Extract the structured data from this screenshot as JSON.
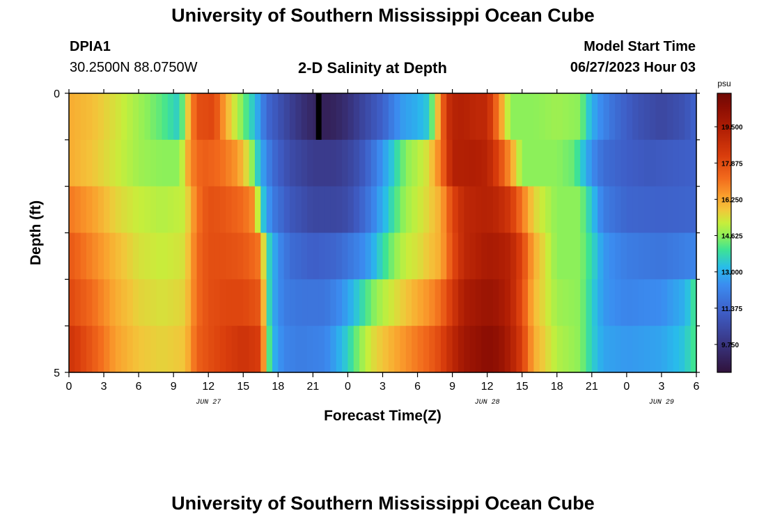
{
  "header": {
    "title": "University of Southern Mississippi Ocean Cube",
    "station_id": "DPIA1",
    "station_coords": "30.2500N  88.0750W",
    "chart_title": "2-D Salinity at Depth",
    "model_start_label": "Model Start Time",
    "model_start_value": "06/27/2023 Hour 03"
  },
  "footer": {
    "title": "University of Southern Mississippi Ocean Cube"
  },
  "chart_data": {
    "type": "heatmap",
    "xlabel": "Forecast Time(Z)",
    "ylabel": "Depth (ft)",
    "x_hours_start": 0,
    "x_hours_end": 54,
    "x_ticks": [
      "0",
      "3",
      "6",
      "9",
      "12",
      "15",
      "18",
      "21",
      "0",
      "3",
      "6",
      "9",
      "12",
      "15",
      "18",
      "21",
      "0",
      "3",
      "6"
    ],
    "date_labels": [
      {
        "text": "JUN 27",
        "hour": 12
      },
      {
        "text": "JUN 28",
        "hour": 36
      },
      {
        "text": "JUN 29",
        "hour": 51
      }
    ],
    "y_ticks": [
      "0",
      "5"
    ],
    "ylim": [
      0,
      5
    ],
    "depth_layers": [
      0,
      1,
      2,
      3,
      4,
      5
    ],
    "colorbar": {
      "unit": "psu",
      "min": 8.5,
      "max": 21.0,
      "labels": [
        "19.500",
        "17.875",
        "16.250",
        "14.625",
        "13.000",
        "11.375",
        "9.750"
      ],
      "label_values": [
        19.5,
        17.875,
        16.25,
        14.625,
        13.0,
        11.375,
        9.75
      ],
      "stops": [
        {
          "v": 8.5,
          "c": "#30123b"
        },
        {
          "v": 10.0,
          "c": "#3a3b8c"
        },
        {
          "v": 11.2,
          "c": "#3e5ec7"
        },
        {
          "v": 12.4,
          "c": "#3b8cf0"
        },
        {
          "v": 13.2,
          "c": "#28bceb"
        },
        {
          "v": 14.0,
          "c": "#3ee394"
        },
        {
          "v": 14.6,
          "c": "#8cf05a"
        },
        {
          "v": 15.2,
          "c": "#c7ee3b"
        },
        {
          "v": 15.8,
          "c": "#f3c53a"
        },
        {
          "v": 16.4,
          "c": "#fa9f2d"
        },
        {
          "v": 17.2,
          "c": "#f26a1c"
        },
        {
          "v": 18.2,
          "c": "#d93d0c"
        },
        {
          "v": 19.4,
          "c": "#b01e04"
        },
        {
          "v": 20.4,
          "c": "#8a0d03"
        },
        {
          "v": 21.0,
          "c": "#6e0a05"
        }
      ]
    },
    "series": [
      {
        "name": "0 ft",
        "times": [
          0,
          2,
          4,
          6,
          8,
          9.5,
          10.5,
          11,
          12.5,
          13.5,
          15,
          16,
          17,
          19,
          20.5,
          22,
          23,
          24,
          25,
          27,
          28.5,
          30,
          31,
          32.5,
          33,
          34,
          35,
          36,
          38,
          38.5,
          40,
          42,
          44,
          45,
          46,
          47,
          48,
          49,
          51,
          53,
          54
        ],
        "values": [
          16.2,
          15.9,
          15.4,
          14.8,
          14.2,
          13.5,
          16.5,
          17.8,
          18.0,
          16.2,
          14.4,
          13.3,
          11.5,
          10.2,
          9.4,
          9.0,
          9.2,
          9.6,
          10.2,
          11.3,
          12.6,
          13.0,
          13.5,
          18.5,
          19.2,
          19.3,
          19.0,
          19.0,
          14.6,
          14.6,
          14.6,
          14.8,
          14.6,
          13.0,
          12.2,
          11.6,
          11.2,
          10.8,
          10.4,
          10.8,
          11.4
        ]
      },
      {
        "name": "1 ft",
        "times": [
          0,
          2,
          4,
          6,
          8,
          9.5,
          10.5,
          11.5,
          13,
          14.5,
          15.5,
          16.5,
          17.5,
          19,
          21,
          23,
          24,
          25,
          26,
          27,
          28,
          29,
          30,
          31,
          32,
          33,
          35,
          36,
          37,
          38,
          39,
          40,
          42,
          43.5,
          45,
          46,
          48,
          50,
          53,
          54
        ],
        "values": [
          16.2,
          15.8,
          15.3,
          14.8,
          14.6,
          14.6,
          16.8,
          17.5,
          17.2,
          16.5,
          15.2,
          13.0,
          11.6,
          10.6,
          10.0,
          10.0,
          10.3,
          10.8,
          11.6,
          12.6,
          13.6,
          14.6,
          15.0,
          15.5,
          17.0,
          19.3,
          19.4,
          19.2,
          18.0,
          16.5,
          14.6,
          14.6,
          14.6,
          14.3,
          12.4,
          11.6,
          11.2,
          11.0,
          11.2,
          11.3
        ]
      },
      {
        "name": "2 ft",
        "times": [
          0,
          2,
          4,
          6,
          8,
          10,
          11,
          12,
          13.5,
          15,
          16,
          16.5,
          17.5,
          19,
          21,
          23,
          24,
          25,
          26,
          27,
          28,
          29,
          30,
          31,
          32,
          33,
          34,
          36,
          37,
          38,
          39,
          40,
          42,
          44,
          45,
          46,
          48,
          51,
          54
        ],
        "values": [
          17.0,
          16.4,
          15.6,
          15.2,
          15.0,
          15.2,
          17.0,
          17.8,
          17.6,
          17.2,
          16.6,
          13.8,
          12.0,
          11.0,
          10.4,
          10.4,
          10.6,
          11.2,
          12.0,
          13.0,
          14.0,
          14.8,
          15.2,
          15.6,
          16.2,
          18.0,
          19.0,
          19.3,
          19.0,
          18.4,
          17.0,
          15.6,
          14.6,
          14.6,
          13.4,
          12.0,
          11.4,
          11.3,
          11.4
        ]
      },
      {
        "name": "3 ft",
        "times": [
          0,
          2,
          4,
          6,
          8,
          10,
          11,
          12,
          13.5,
          15,
          16.5,
          17,
          18,
          19,
          21,
          23,
          24,
          25,
          26,
          27,
          28,
          29,
          30,
          31,
          32,
          33,
          34,
          36,
          37,
          38,
          39,
          40,
          42,
          44,
          45,
          46,
          48,
          51,
          54
        ],
        "values": [
          17.6,
          16.8,
          16.0,
          15.4,
          15.2,
          15.4,
          17.2,
          17.8,
          17.8,
          17.6,
          17.0,
          14.0,
          12.4,
          11.6,
          11.2,
          11.4,
          11.8,
          12.2,
          12.8,
          13.8,
          14.6,
          15.2,
          15.4,
          15.8,
          16.2,
          17.8,
          19.0,
          19.6,
          19.5,
          19.2,
          18.0,
          16.2,
          14.6,
          14.6,
          13.8,
          12.6,
          12.0,
          11.8,
          12.2
        ]
      },
      {
        "name": "4 ft",
        "times": [
          0,
          2,
          4,
          6,
          8,
          10,
          11,
          12,
          13.5,
          15,
          16.5,
          17,
          17.5,
          18.5,
          20,
          22,
          23,
          24,
          25,
          26,
          27,
          28,
          29,
          30,
          31,
          32,
          33,
          34,
          36,
          37,
          38,
          39,
          40,
          42,
          44,
          45,
          46,
          48,
          51,
          53,
          54
        ],
        "values": [
          18.0,
          17.2,
          16.2,
          15.6,
          15.4,
          15.6,
          17.2,
          17.8,
          18.0,
          18.0,
          17.6,
          14.4,
          13.0,
          12.0,
          11.8,
          11.8,
          12.2,
          12.8,
          13.6,
          14.4,
          15.0,
          15.4,
          15.8,
          16.2,
          16.6,
          17.2,
          18.4,
          19.5,
          20.0,
          19.8,
          19.2,
          17.8,
          16.0,
          14.8,
          14.6,
          13.6,
          12.6,
          12.2,
          12.4,
          13.0,
          14.2
        ]
      },
      {
        "name": "5 ft",
        "times": [
          0,
          2,
          4,
          6,
          8,
          10,
          11,
          12,
          13.5,
          15,
          16.5,
          17,
          17.5,
          18.5,
          20,
          22,
          23,
          24,
          25,
          26,
          27,
          28,
          29,
          30,
          31,
          32,
          33,
          34,
          36,
          37,
          38,
          39,
          40,
          42,
          44,
          45,
          46,
          48,
          51,
          53,
          54
        ],
        "values": [
          18.6,
          17.6,
          16.4,
          15.8,
          15.6,
          15.8,
          17.4,
          17.8,
          18.2,
          18.6,
          18.2,
          15.0,
          13.2,
          12.2,
          12.0,
          12.2,
          12.8,
          13.6,
          14.6,
          15.4,
          15.8,
          16.2,
          16.6,
          17.0,
          17.4,
          18.0,
          19.0,
          19.8,
          20.4,
          20.2,
          19.4,
          18.2,
          16.2,
          15.0,
          14.6,
          13.6,
          12.8,
          12.6,
          12.8,
          13.4,
          14.2
        ]
      }
    ],
    "minimum_marker": {
      "hour": 21.5,
      "depth": 0
    }
  }
}
